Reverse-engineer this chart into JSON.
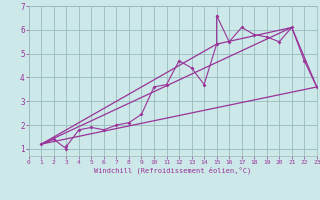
{
  "title": "",
  "xlabel": "Windchill (Refroidissement éolien,°C)",
  "bg_color": "#cce8e8",
  "line_color": "#993399",
  "grid_color": "#99bbbb",
  "xlim": [
    0,
    23
  ],
  "ylim": [
    0.7,
    7.0
  ],
  "xticks": [
    0,
    1,
    2,
    3,
    4,
    5,
    6,
    7,
    8,
    9,
    10,
    11,
    12,
    13,
    14,
    15,
    16,
    17,
    18,
    19,
    20,
    21,
    22,
    23
  ],
  "yticks": [
    1,
    2,
    3,
    4,
    5,
    6,
    7
  ],
  "scatter_x": [
    1,
    2,
    3,
    3,
    4,
    5,
    6,
    7,
    8,
    9,
    10,
    11,
    12,
    13,
    14,
    15,
    15,
    16,
    17,
    18,
    19,
    20,
    21,
    22,
    23
  ],
  "scatter_y": [
    1.2,
    1.4,
    1.0,
    1.1,
    1.8,
    1.9,
    1.8,
    2.0,
    2.1,
    2.45,
    3.6,
    3.7,
    4.7,
    4.4,
    3.7,
    5.4,
    6.6,
    5.5,
    6.1,
    5.8,
    5.7,
    5.5,
    6.1,
    4.7,
    3.6
  ],
  "line1_x": [
    1,
    23
  ],
  "line1_y": [
    1.2,
    3.6
  ],
  "line2_x": [
    1,
    21
  ],
  "line2_y": [
    1.2,
    6.1
  ],
  "line3_x": [
    1,
    15,
    21,
    23
  ],
  "line3_y": [
    1.2,
    5.4,
    6.1,
    3.6
  ]
}
